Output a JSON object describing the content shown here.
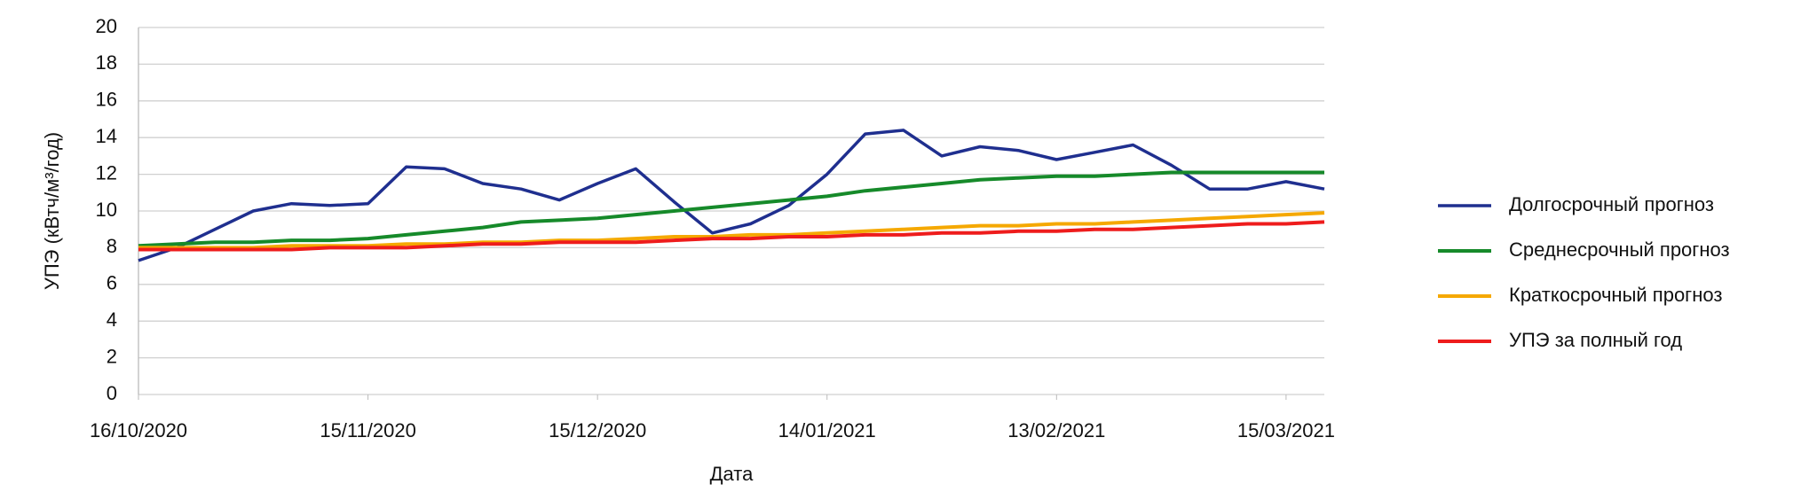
{
  "chart_data": {
    "type": "line",
    "ylabel": "УПЭ (кВтч/м³/год)",
    "xlabel": "Дата",
    "x": [
      "2020-10-16",
      "2020-10-21",
      "2020-10-26",
      "2020-10-31",
      "2020-11-05",
      "2020-11-10",
      "2020-11-15",
      "2020-11-20",
      "2020-11-25",
      "2020-11-30",
      "2020-12-05",
      "2020-12-10",
      "2020-12-15",
      "2020-12-20",
      "2020-12-25",
      "2020-12-30",
      "2021-01-04",
      "2021-01-09",
      "2021-01-14",
      "2021-01-19",
      "2021-01-24",
      "2021-01-29",
      "2021-02-03",
      "2021-02-08",
      "2021-02-13",
      "2021-02-18",
      "2021-02-23",
      "2021-02-28",
      "2021-03-05",
      "2021-03-10",
      "2021-03-15",
      "2021-03-20"
    ],
    "series": [
      {
        "name": "Долгосрочный прогноз",
        "color": "#1f2f8f",
        "values": [
          7.3,
          8.0,
          9.0,
          10.0,
          10.4,
          10.3,
          10.4,
          12.4,
          12.3,
          11.5,
          11.2,
          10.6,
          11.5,
          12.3,
          10.5,
          8.8,
          9.3,
          10.3,
          12.0,
          14.2,
          14.4,
          13.0,
          13.5,
          13.3,
          12.8,
          13.2,
          13.6,
          12.5,
          11.2,
          11.2,
          11.6,
          11.2
        ]
      },
      {
        "name": "Среднесрочный прогноз",
        "color": "#168a2a",
        "values": [
          8.1,
          8.2,
          8.3,
          8.3,
          8.4,
          8.4,
          8.5,
          8.7,
          8.9,
          9.1,
          9.4,
          9.5,
          9.6,
          9.8,
          10.0,
          10.2,
          10.4,
          10.6,
          10.8,
          11.1,
          11.3,
          11.5,
          11.7,
          11.8,
          11.9,
          11.9,
          12.0,
          12.1,
          12.1,
          12.1,
          12.1,
          12.1
        ]
      },
      {
        "name": "Краткосрочный прогноз",
        "color": "#f5a800",
        "values": [
          8.0,
          8.0,
          8.0,
          8.0,
          8.1,
          8.1,
          8.1,
          8.2,
          8.2,
          8.3,
          8.3,
          8.4,
          8.4,
          8.5,
          8.6,
          8.6,
          8.7,
          8.7,
          8.8,
          8.9,
          9.0,
          9.1,
          9.2,
          9.2,
          9.3,
          9.3,
          9.4,
          9.5,
          9.6,
          9.7,
          9.8,
          9.9
        ]
      },
      {
        "name": "УПЭ за полный год",
        "color": "#ee1c1c",
        "values": [
          7.9,
          7.9,
          7.9,
          7.9,
          7.9,
          8.0,
          8.0,
          8.0,
          8.1,
          8.2,
          8.2,
          8.3,
          8.3,
          8.3,
          8.4,
          8.5,
          8.5,
          8.6,
          8.6,
          8.7,
          8.7,
          8.8,
          8.8,
          8.9,
          8.9,
          9.0,
          9.0,
          9.1,
          9.2,
          9.3,
          9.3,
          9.4
        ]
      }
    ],
    "xlim": [
      "2020-10-16",
      "2021-03-20"
    ],
    "xticks": [
      {
        "value": "2020-10-16",
        "label": "16/10/2020"
      },
      {
        "value": "2020-11-15",
        "label": "15/11/2020"
      },
      {
        "value": "2020-12-15",
        "label": "15/12/2020"
      },
      {
        "value": "2021-01-14",
        "label": "14/01/2021"
      },
      {
        "value": "2021-02-13",
        "label": "13/02/2021"
      },
      {
        "value": "2021-03-15",
        "label": "15/03/2021"
      }
    ],
    "ylim": [
      0,
      20
    ],
    "yticks": [
      0,
      2,
      4,
      6,
      8,
      10,
      12,
      14,
      16,
      18,
      20
    ],
    "grid": true,
    "legend": "right"
  }
}
